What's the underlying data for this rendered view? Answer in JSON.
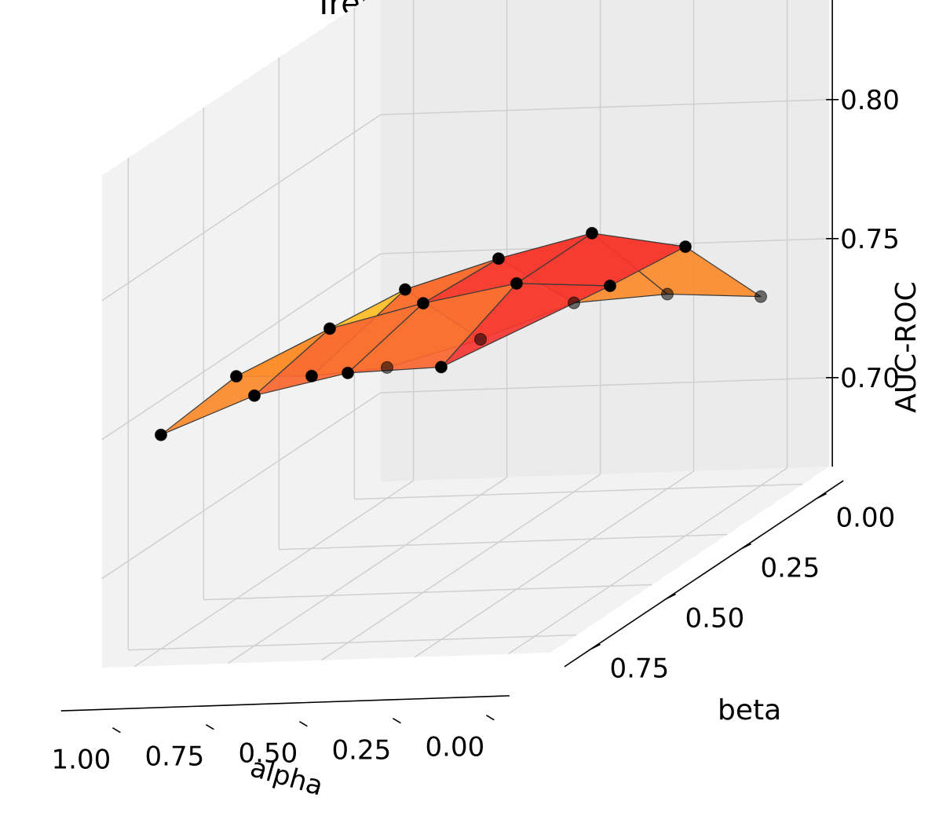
{
  "chart_data": {
    "type": "surface3d",
    "title": "Tree-Grid, GradCAM",
    "xlabel": "alpha",
    "ylabel": "beta",
    "zlabel": "AUC-ROC",
    "x_ticks": [
      "1.00",
      "0.75",
      "0.50",
      "0.25",
      "0.00"
    ],
    "y_ticks": [
      "0.00",
      "0.25",
      "0.50",
      "0.75"
    ],
    "z_ticks": [
      "0.70",
      "0.75",
      "0.80"
    ],
    "zlim": [
      0.7,
      0.82
    ],
    "grid": true,
    "colormap": [
      "#ffff33",
      "#ffc832",
      "#fb8a2d",
      "#f96630",
      "#f53430"
    ],
    "surface": [
      {
        "beta": 0.75,
        "alpha": [
          1.0,
          0.75,
          0.5,
          0.25
        ],
        "auc": [
          0.745,
          0.758,
          0.765,
          0.766
        ]
      },
      {
        "beta": 0.5,
        "alpha": [
          1.0,
          0.75,
          0.5,
          0.25,
          0.0
        ],
        "auc": [
          0.748,
          0.764,
          0.772,
          0.778,
          0.776
        ]
      },
      {
        "beta": 0.25,
        "alpha": [
          1.0,
          0.75,
          0.5,
          0.25,
          0.0
        ],
        "auc": [
          0.73,
          0.76,
          0.77,
          0.778,
          0.772
        ]
      },
      {
        "beta": 0.0,
        "alpha": [
          1.0,
          0.75,
          0.5,
          0.25,
          0.0
        ],
        "auc": [
          0.715,
          0.724,
          0.736,
          0.738,
          0.736
        ]
      }
    ]
  }
}
